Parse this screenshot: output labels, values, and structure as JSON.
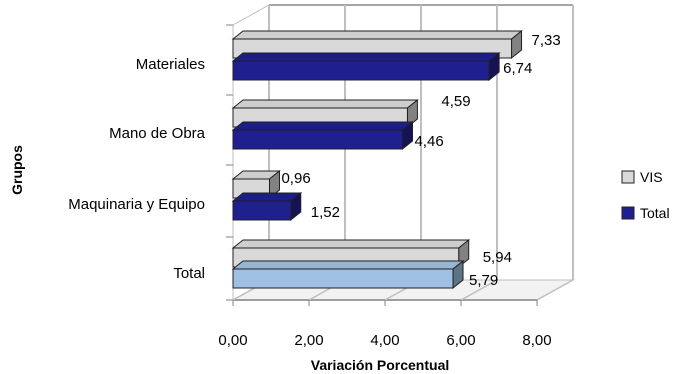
{
  "chart_data": {
    "type": "bar",
    "orientation": "horizontal",
    "style": "3d-clustered",
    "categories": [
      "Materiales",
      "Mano de Obra",
      "Maquinaria y Equipo",
      "Total"
    ],
    "series": [
      {
        "name": "VIS",
        "values": [
          7.33,
          4.59,
          0.96,
          5.94
        ],
        "labels": [
          "7,33",
          "4,59",
          "0,96",
          "5,94"
        ]
      },
      {
        "name": "Total",
        "values": [
          6.74,
          4.46,
          1.52,
          5.79
        ],
        "labels": [
          "6,74",
          "4,46",
          "1,52",
          "5,79"
        ]
      }
    ],
    "xlabel": "Variación Porcentual",
    "ylabel": "Grupos",
    "xlim": [
      0,
      8
    ],
    "xticks": [
      "0,00",
      "2,00",
      "4,00",
      "6,00",
      "8,00"
    ],
    "grid": true,
    "legend_position": "right",
    "colors": {
      "vis": "#d9d9d9",
      "total": "#1f1f8f",
      "total_highlight": "#9fc0e0",
      "grid": "#bfbfbf"
    }
  }
}
